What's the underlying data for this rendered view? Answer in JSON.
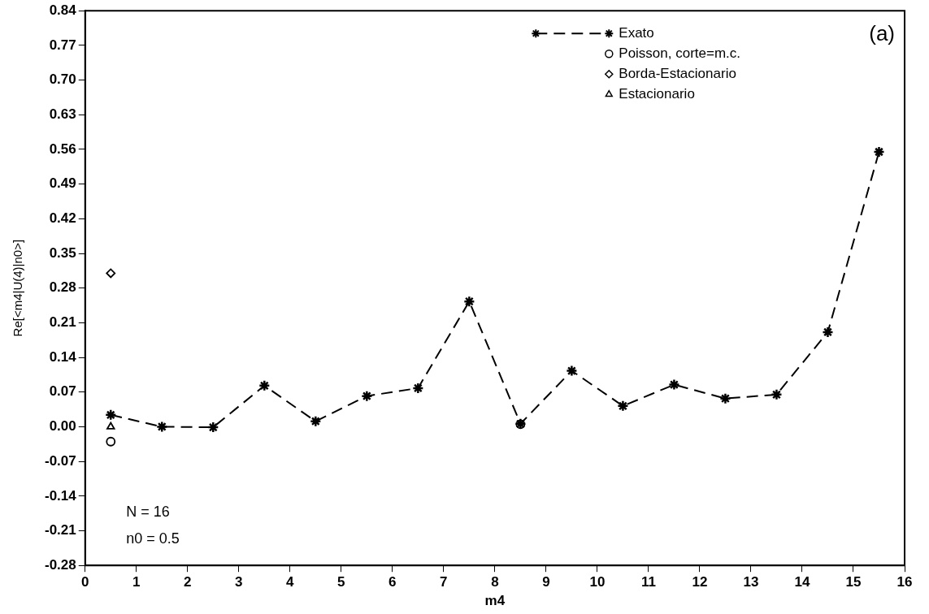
{
  "chart_data": {
    "type": "scatter",
    "xlabel": "m4",
    "ylabel": "Re[<m4|U(4)|n0>]",
    "xlim": [
      0,
      16
    ],
    "xticks": [
      0,
      1,
      2,
      3,
      4,
      5,
      6,
      7,
      8,
      9,
      10,
      11,
      12,
      13,
      14,
      15,
      16
    ],
    "ylim": [
      -0.28,
      0.84
    ],
    "yticks": [
      -0.28,
      -0.21,
      -0.14,
      -0.07,
      {
        "value": 0,
        "label": "0.00"
      },
      0.07,
      0.14,
      0.21,
      0.28,
      0.35,
      0.42,
      0.49,
      0.56,
      0.63,
      {
        "value": 0.7,
        "label": "0.70"
      },
      0.77,
      0.84
    ],
    "grid": false,
    "legend": "top right",
    "annotations": [
      "(a)",
      "N = 16",
      "n0 = 0.5"
    ],
    "series": [
      {
        "name": "Exato",
        "type": "line",
        "line_style": "dashed",
        "marker": "cross",
        "color": "#000000",
        "x": [
          0.5,
          1.5,
          2.5,
          3.5,
          4.5,
          5.5,
          6.5,
          7.5,
          8.5,
          9.5,
          10.5,
          11.5,
          12.5,
          13.5,
          14.5,
          15.5
        ],
        "values": [
          0.024,
          0.0,
          -0.001,
          0.083,
          0.011,
          0.062,
          0.078,
          0.253,
          0.006,
          0.113,
          0.042,
          0.085,
          0.057,
          0.065,
          0.191,
          0.555
        ]
      },
      {
        "name": "Poisson, corte=m.c.",
        "marker": "circle",
        "color": "#000000",
        "x": [
          0.5,
          8.5
        ],
        "values": [
          -0.03,
          0.005
        ]
      },
      {
        "name": "Borda-Estacionario",
        "marker": "diamond",
        "color": "#000000",
        "x": [
          0.5
        ],
        "values": [
          0.31
        ]
      },
      {
        "name": "Estacionario",
        "marker": "triangle",
        "color": "#000000",
        "x": [
          0.5
        ],
        "values": [
          0.0
        ]
      }
    ]
  }
}
